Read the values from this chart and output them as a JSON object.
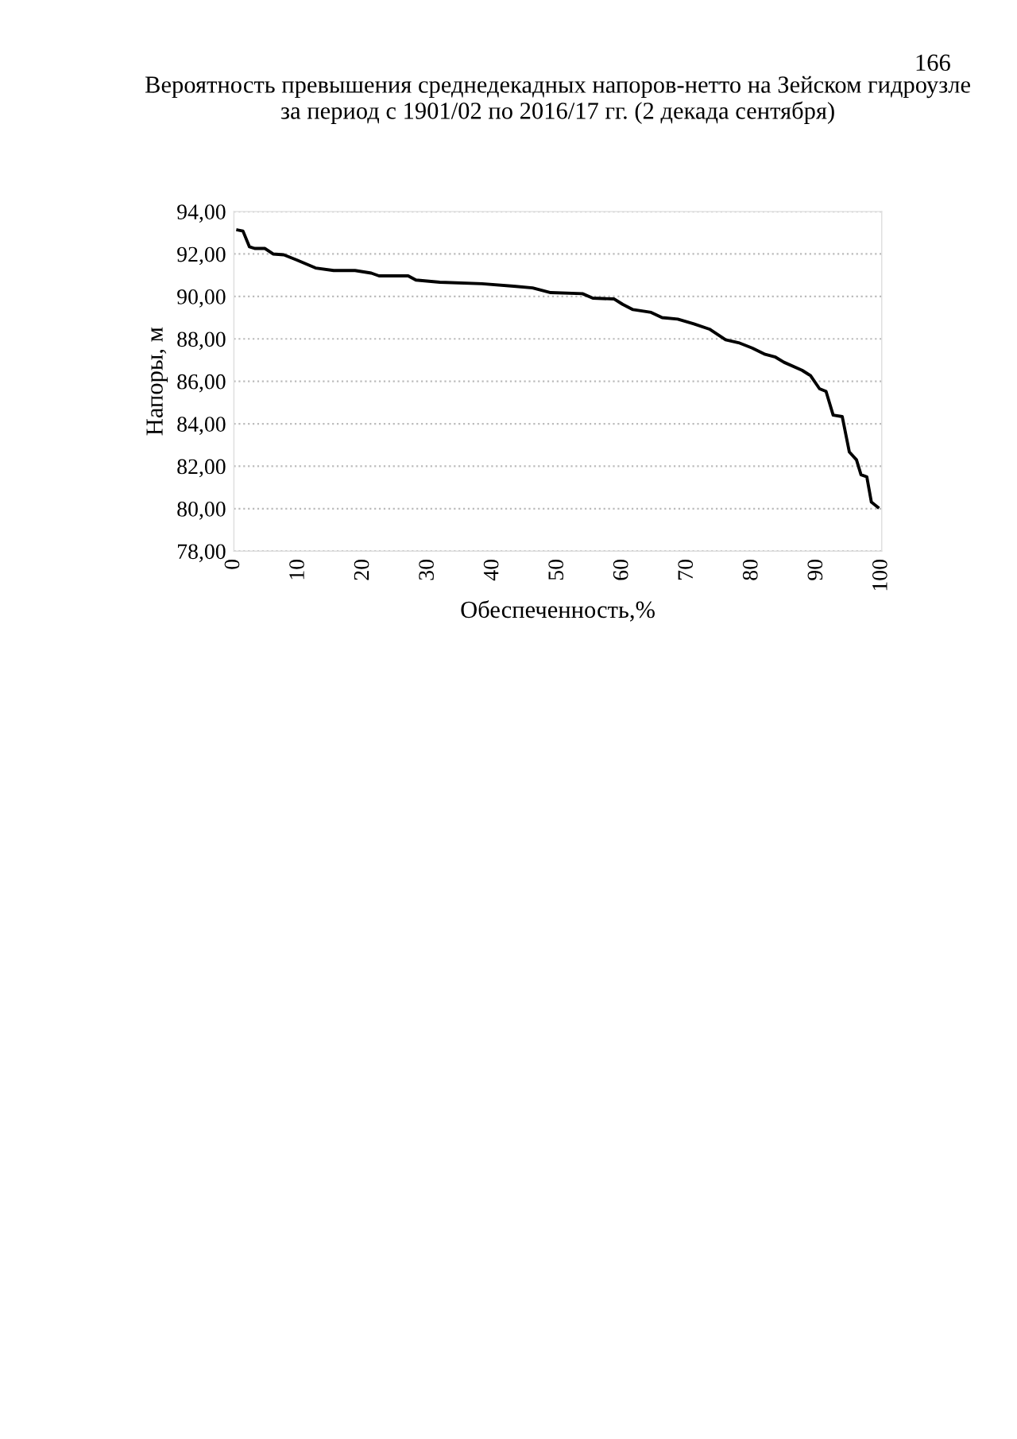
{
  "chart_data": {
    "type": "line",
    "title": "Вероятность превышения среднедекадных напоров-нетто на Зейском гидроузле\nза период с 1901/02 по 2016/17 гг. (2 декада сентября)",
    "xlabel": "Обеспеченность,%",
    "ylabel": "Напоры, м",
    "annotations": [
      "166"
    ],
    "x": [
      0.6,
      1.4,
      2.4,
      3.2,
      4.8,
      6.05,
      7.7,
      9.7,
      12.6,
      15.4,
      18.7,
      21.2,
      22.4,
      26.9,
      28.1,
      31.8,
      38.3,
      43.2,
      46.1,
      48.9,
      53.8,
      55.4,
      58.7,
      60.0,
      61.6,
      64.4,
      66.1,
      68.5,
      71.0,
      73.4,
      75.9,
      77.9,
      80.0,
      82.0,
      83.6,
      84.9,
      87.7,
      89.0,
      90.4,
      91.4,
      92.5,
      93.9,
      95.0,
      96.1,
      96.8,
      97.7,
      98.4,
      99.4
    ],
    "series": [
      {
        "color": "#000000",
        "values": [
          93.13,
          93.08,
          92.34,
          92.26,
          92.26,
          92.0,
          91.96,
          91.72,
          91.34,
          91.22,
          91.22,
          91.1,
          90.97,
          90.97,
          90.77,
          90.67,
          90.6,
          90.48,
          90.4,
          90.18,
          90.13,
          89.92,
          89.88,
          89.63,
          89.38,
          89.25,
          89.0,
          88.93,
          88.71,
          88.46,
          87.96,
          87.82,
          87.57,
          87.27,
          87.14,
          86.9,
          86.52,
          86.27,
          85.65,
          85.53,
          84.41,
          84.34,
          82.67,
          82.3,
          81.6,
          81.5,
          80.31,
          80.07
        ]
      }
    ],
    "xlim": [
      0,
      100
    ],
    "xticks": [
      0,
      10,
      20,
      30,
      40,
      50,
      60,
      70,
      80,
      90,
      100
    ],
    "ylim": [
      78,
      94
    ],
    "yticks": [
      {
        "value": 78,
        "label": "78,00"
      },
      {
        "value": 80,
        "label": "80,00"
      },
      {
        "value": 82,
        "label": "82,00"
      },
      {
        "value": 84,
        "label": "84,00"
      },
      {
        "value": 86,
        "label": "86,00"
      },
      {
        "value": 88,
        "label": "88,00"
      },
      {
        "value": 90,
        "label": "90,00"
      },
      {
        "value": 92,
        "label": "92,00"
      },
      {
        "value": 94,
        "label": "94,00"
      }
    ],
    "grid": "y",
    "legend": false,
    "marker": "none",
    "line_style": "solid"
  }
}
